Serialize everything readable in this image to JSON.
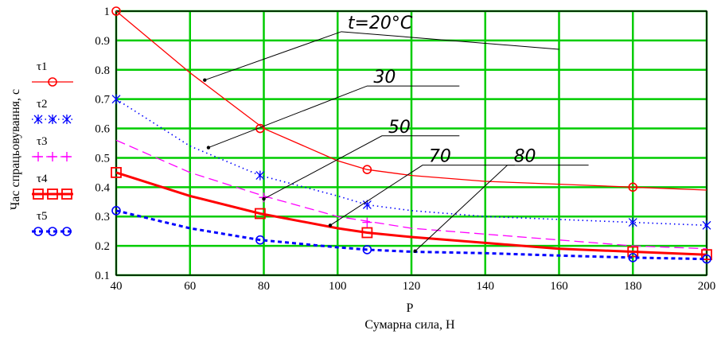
{
  "chart_data": {
    "type": "line",
    "xlabel_symbol": "P",
    "xlabel": "Сумарна сила, Н",
    "ylabel": "Час спрацьовування, с",
    "xlim": [
      40,
      200
    ],
    "ylim": [
      0.1,
      1
    ],
    "xticks": [
      "40",
      "60",
      "80",
      "100",
      "120",
      "140",
      "160",
      "180",
      "200"
    ],
    "yticks": [
      "0.1",
      "0.2",
      "0.3",
      "0.4",
      "0.5",
      "0.6",
      "0.7",
      "0.8",
      "0.9",
      "1"
    ],
    "grid": true,
    "legend_position": "left",
    "series": [
      {
        "name": "τ1",
        "color": "#ff0000",
        "style": "solid",
        "marker": "circle",
        "x": [
          40,
          60,
          80,
          100,
          108,
          120,
          140,
          160,
          180,
          200
        ],
        "y": [
          1.0,
          0.79,
          0.6,
          0.49,
          0.46,
          0.44,
          0.42,
          0.41,
          0.4,
          0.39
        ],
        "marker_x": [
          40,
          79,
          108,
          180
        ],
        "marker_y": [
          1.0,
          0.6,
          0.46,
          0.4
        ]
      },
      {
        "name": "τ2",
        "color": "#0000ff",
        "style": "dotted",
        "marker": "x-star",
        "x": [
          40,
          60,
          79,
          100,
          108,
          120,
          140,
          160,
          180,
          200
        ],
        "y": [
          0.7,
          0.54,
          0.44,
          0.37,
          0.34,
          0.32,
          0.3,
          0.29,
          0.28,
          0.27
        ],
        "marker_x": [
          40,
          79,
          108,
          180,
          200
        ],
        "marker_y": [
          0.7,
          0.44,
          0.34,
          0.28,
          0.27
        ]
      },
      {
        "name": "τ3",
        "color": "#ff00ff",
        "style": "dashed",
        "marker": "plus",
        "x": [
          40,
          60,
          80,
          100,
          120,
          140,
          160,
          180,
          200
        ],
        "y": [
          0.56,
          0.45,
          0.37,
          0.3,
          0.26,
          0.24,
          0.22,
          0.2,
          0.19
        ],
        "marker_x": [
          80,
          108
        ],
        "marker_y": [
          0.365,
          0.28
        ]
      },
      {
        "name": "τ4",
        "color": "#ff0000",
        "style": "thick",
        "marker": "square",
        "x": [
          40,
          60,
          79,
          100,
          108,
          120,
          140,
          160,
          180,
          200
        ],
        "y": [
          0.45,
          0.37,
          0.31,
          0.26,
          0.245,
          0.23,
          0.21,
          0.19,
          0.18,
          0.17
        ],
        "marker_x": [
          40,
          79,
          108,
          180,
          200
        ],
        "marker_y": [
          0.45,
          0.31,
          0.245,
          0.18,
          0.17
        ]
      },
      {
        "name": "τ5",
        "color": "#0000ff",
        "style": "thick-dashed",
        "marker": "circle",
        "x": [
          40,
          60,
          79,
          100,
          108,
          120,
          140,
          160,
          180,
          200
        ],
        "y": [
          0.32,
          0.26,
          0.22,
          0.195,
          0.187,
          0.18,
          0.175,
          0.167,
          0.16,
          0.155
        ],
        "marker_x": [
          40,
          79,
          108,
          180,
          200
        ],
        "marker_y": [
          0.32,
          0.22,
          0.187,
          0.16,
          0.155
        ]
      }
    ],
    "annotations": [
      {
        "text": "t=20°C",
        "dot_x": 64,
        "dot_y": 0.765,
        "mid_x": 101,
        "mid_y": 0.93,
        "end_x": 160,
        "end_y": 0.87
      },
      {
        "text": "30",
        "dot_x": 65,
        "dot_y": 0.535,
        "mid_x": 108,
        "mid_y": 0.745,
        "end_x": 133,
        "end_y": 0.745
      },
      {
        "text": "50",
        "dot_x": 80,
        "dot_y": 0.36,
        "mid_x": 112,
        "mid_y": 0.575,
        "end_x": 133,
        "end_y": 0.575
      },
      {
        "text": "70",
        "dot_x": 98,
        "dot_y": 0.27,
        "mid_x": 123,
        "mid_y": 0.475,
        "end_x": 148,
        "end_y": 0.475
      },
      {
        "text": "80",
        "dot_x": 121,
        "dot_y": 0.182,
        "mid_x": 146,
        "mid_y": 0.475,
        "end_x": 168,
        "end_y": 0.475
      }
    ]
  }
}
